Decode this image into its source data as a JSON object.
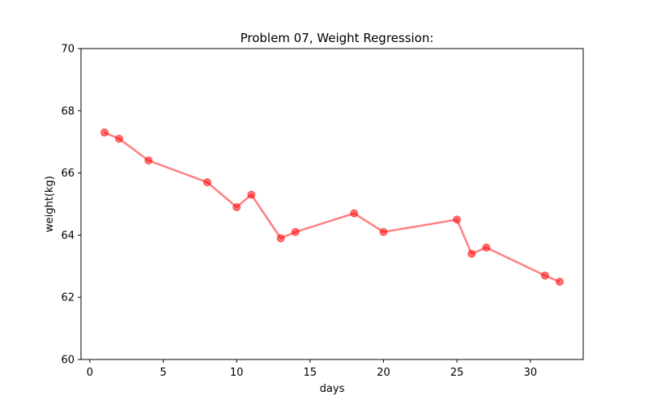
{
  "chart_data": {
    "type": "line",
    "title": "Problem 07, Weight Regression:",
    "xlabel": "days",
    "ylabel": "weight(kg)",
    "xlim": [
      -0.6,
      33.6
    ],
    "ylim": [
      60,
      70
    ],
    "xticks": [
      0,
      5,
      10,
      15,
      20,
      25,
      30
    ],
    "yticks": [
      60,
      62,
      64,
      66,
      68,
      70
    ],
    "grid": false,
    "series": [
      {
        "color": "#ff0000",
        "x": [
          1,
          2,
          4,
          8,
          10,
          11,
          13,
          14,
          18,
          20,
          25,
          26,
          27,
          31,
          32
        ],
        "y": [
          67.3,
          67.1,
          66.4,
          65.7,
          64.9,
          65.3,
          63.9,
          64.1,
          64.7,
          64.1,
          64.5,
          63.4,
          63.6,
          62.7,
          62.5
        ]
      }
    ]
  }
}
